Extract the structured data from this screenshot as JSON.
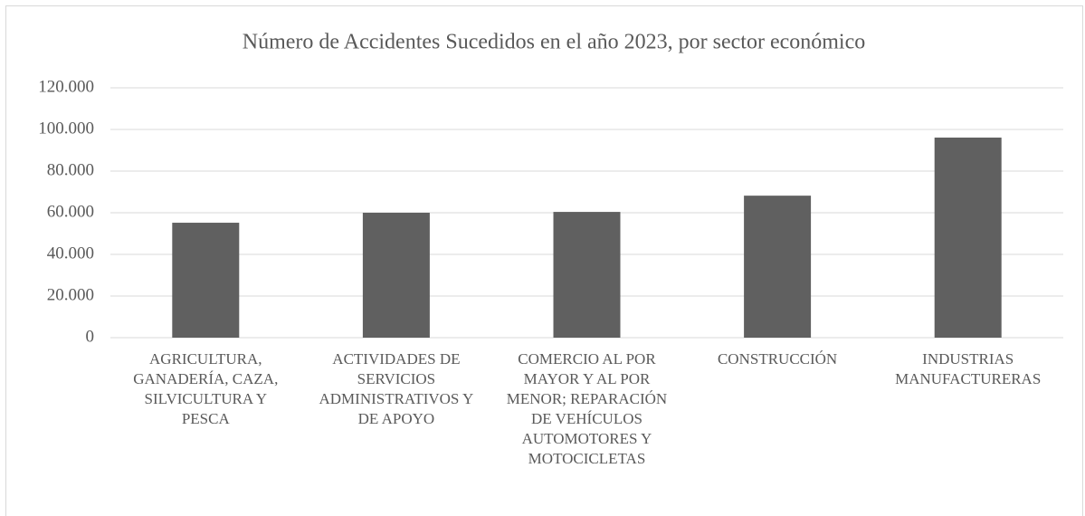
{
  "chart_data": {
    "type": "bar",
    "title": "Número de Accidentes Sucedidos en el año 2023, por sector económico",
    "categories": [
      "AGRICULTURA, GANADERÍA, CAZA, SILVICULTURA Y PESCA",
      "ACTIVIDADES DE SERVICIOS ADMINISTRATIVOS Y DE APOYO",
      "COMERCIO AL POR MAYOR Y AL POR MENOR; REPARACIÓN DE VEHÍCULOS AUTOMOTORES Y MOTOCICLETAS",
      "CONSTRUCCIÓN",
      "INDUSTRIAS MANUFACTURERAS"
    ],
    "values": [
      55200,
      60000,
      60400,
      68200,
      96100
    ],
    "color": "#606060",
    "ylim": [
      0,
      120000
    ],
    "yticks": [
      0,
      {
        "value": 20000,
        "label": "20.000"
      },
      {
        "value": 40000,
        "label": "40.000"
      },
      {
        "value": 60000,
        "label": "60.000"
      },
      {
        "value": 80000,
        "label": "80.000"
      },
      {
        "value": 100000,
        "label": "100.000"
      },
      {
        "value": 120000,
        "label": "120.000"
      }
    ],
    "grid": true
  }
}
